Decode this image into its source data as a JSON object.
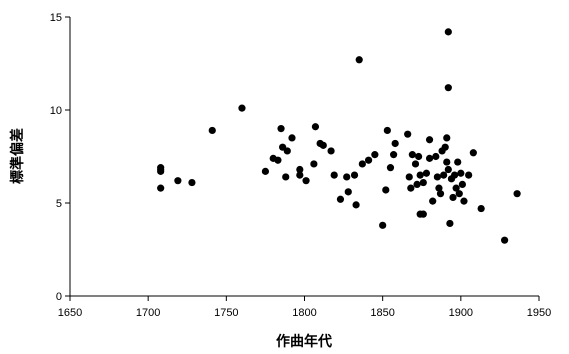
{
  "chart_data": {
    "type": "scatter",
    "title": "",
    "xlabel": "作曲年代",
    "ylabel": "標準偏差",
    "xlim": [
      1650,
      1950
    ],
    "ylim": [
      0,
      15
    ],
    "x_ticks": [
      1650,
      1700,
      1750,
      1800,
      1850,
      1900,
      1950
    ],
    "y_ticks": [
      0,
      5,
      10,
      15
    ],
    "grid": false,
    "legend": "none",
    "marker_color": "#000000",
    "points": [
      {
        "x": 1708,
        "y": 6.9
      },
      {
        "x": 1708,
        "y": 6.8
      },
      {
        "x": 1708,
        "y": 6.7
      },
      {
        "x": 1708,
        "y": 5.8
      },
      {
        "x": 1719,
        "y": 6.2
      },
      {
        "x": 1728,
        "y": 6.1
      },
      {
        "x": 1741,
        "y": 8.9
      },
      {
        "x": 1760,
        "y": 10.1
      },
      {
        "x": 1775,
        "y": 6.7
      },
      {
        "x": 1780,
        "y": 7.4
      },
      {
        "x": 1783,
        "y": 7.3
      },
      {
        "x": 1785,
        "y": 9.0
      },
      {
        "x": 1786,
        "y": 8.0
      },
      {
        "x": 1788,
        "y": 6.4
      },
      {
        "x": 1789,
        "y": 7.8
      },
      {
        "x": 1792,
        "y": 8.5
      },
      {
        "x": 1797,
        "y": 6.8
      },
      {
        "x": 1797,
        "y": 6.5
      },
      {
        "x": 1801,
        "y": 6.2
      },
      {
        "x": 1806,
        "y": 7.1
      },
      {
        "x": 1807,
        "y": 9.1
      },
      {
        "x": 1810,
        "y": 8.2
      },
      {
        "x": 1812,
        "y": 8.1
      },
      {
        "x": 1817,
        "y": 7.8
      },
      {
        "x": 1819,
        "y": 6.5
      },
      {
        "x": 1823,
        "y": 5.2
      },
      {
        "x": 1827,
        "y": 6.4
      },
      {
        "x": 1828,
        "y": 5.6
      },
      {
        "x": 1832,
        "y": 6.5
      },
      {
        "x": 1833,
        "y": 4.9
      },
      {
        "x": 1835,
        "y": 12.7
      },
      {
        "x": 1837,
        "y": 7.1
      },
      {
        "x": 1841,
        "y": 7.3
      },
      {
        "x": 1845,
        "y": 7.6
      },
      {
        "x": 1850,
        "y": 3.8
      },
      {
        "x": 1852,
        "y": 5.7
      },
      {
        "x": 1853,
        "y": 8.9
      },
      {
        "x": 1855,
        "y": 6.9
      },
      {
        "x": 1857,
        "y": 7.6
      },
      {
        "x": 1858,
        "y": 8.2
      },
      {
        "x": 1866,
        "y": 8.7
      },
      {
        "x": 1867,
        "y": 6.4
      },
      {
        "x": 1868,
        "y": 5.8
      },
      {
        "x": 1869,
        "y": 7.6
      },
      {
        "x": 1871,
        "y": 7.1
      },
      {
        "x": 1872,
        "y": 6.0
      },
      {
        "x": 1873,
        "y": 7.5
      },
      {
        "x": 1874,
        "y": 6.5
      },
      {
        "x": 1874,
        "y": 4.4
      },
      {
        "x": 1876,
        "y": 6.1
      },
      {
        "x": 1876,
        "y": 4.4
      },
      {
        "x": 1878,
        "y": 6.6
      },
      {
        "x": 1880,
        "y": 7.4
      },
      {
        "x": 1880,
        "y": 8.4
      },
      {
        "x": 1882,
        "y": 5.1
      },
      {
        "x": 1884,
        "y": 7.5
      },
      {
        "x": 1885,
        "y": 6.4
      },
      {
        "x": 1886,
        "y": 5.8
      },
      {
        "x": 1887,
        "y": 5.5
      },
      {
        "x": 1888,
        "y": 7.8
      },
      {
        "x": 1889,
        "y": 6.5
      },
      {
        "x": 1890,
        "y": 8.0
      },
      {
        "x": 1891,
        "y": 8.5
      },
      {
        "x": 1891,
        "y": 7.2
      },
      {
        "x": 1892,
        "y": 14.2
      },
      {
        "x": 1892,
        "y": 11.2
      },
      {
        "x": 1892,
        "y": 6.8
      },
      {
        "x": 1893,
        "y": 3.9
      },
      {
        "x": 1894,
        "y": 6.3
      },
      {
        "x": 1895,
        "y": 5.3
      },
      {
        "x": 1896,
        "y": 6.5
      },
      {
        "x": 1897,
        "y": 5.8
      },
      {
        "x": 1898,
        "y": 7.2
      },
      {
        "x": 1899,
        "y": 5.5
      },
      {
        "x": 1900,
        "y": 6.6
      },
      {
        "x": 1901,
        "y": 6.0
      },
      {
        "x": 1902,
        "y": 5.1
      },
      {
        "x": 1905,
        "y": 6.5
      },
      {
        "x": 1908,
        "y": 7.7
      },
      {
        "x": 1913,
        "y": 4.7
      },
      {
        "x": 1928,
        "y": 3.0
      },
      {
        "x": 1936,
        "y": 5.5
      }
    ]
  }
}
